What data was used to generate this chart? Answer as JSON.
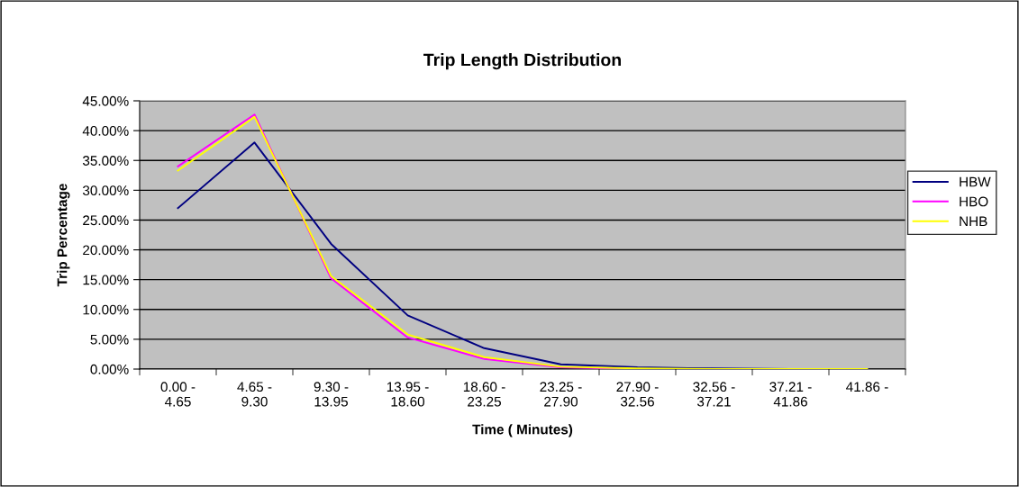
{
  "chart_data": {
    "type": "line",
    "title": "Trip Length Distribution",
    "xlabel": "Time ( Minutes)",
    "ylabel": "Trip Percentage",
    "categories": [
      "0.00 -\n4.65",
      "4.65 -\n9.30",
      "9.30 -\n13.95",
      "13.95 -\n18.60",
      "18.60 -\n23.25",
      "23.25 -\n27.90",
      "27.90 -\n32.56",
      "32.56 -\n37.21",
      "37.21 -\n41.86",
      "41.86 -"
    ],
    "series": [
      {
        "name": "HBW",
        "color": "#000080",
        "values": [
          27.0,
          38.0,
          21.0,
          9.0,
          3.5,
          0.8,
          0.3,
          0.1,
          0.0,
          0.0
        ]
      },
      {
        "name": "HBO",
        "color": "#ff00ff",
        "values": [
          34.0,
          42.7,
          15.2,
          5.3,
          1.7,
          0.3,
          0.0,
          null,
          null,
          null
        ]
      },
      {
        "name": "NHB",
        "color": "#ffff00",
        "values": [
          33.3,
          42.3,
          15.6,
          5.8,
          2.0,
          0.4,
          0.1,
          0.0,
          0.0,
          0.0
        ]
      }
    ],
    "ylim": [
      0,
      45
    ],
    "yticks": [
      {
        "value": 0,
        "label": "0.00%"
      },
      {
        "value": 5,
        "label": "5.00%"
      },
      {
        "value": 10,
        "label": "10.00%"
      },
      {
        "value": 15,
        "label": "15.00%"
      },
      {
        "value": 20,
        "label": "20.00%"
      },
      {
        "value": 25,
        "label": "25.00%"
      },
      {
        "value": 30,
        "label": "30.00%"
      },
      {
        "value": 35,
        "label": "35.00%"
      },
      {
        "value": 40,
        "label": "40.00%"
      },
      {
        "value": 45,
        "label": "45.00%"
      }
    ],
    "grid": "y",
    "legend": "right",
    "marker": "none",
    "line_style": "solid"
  }
}
